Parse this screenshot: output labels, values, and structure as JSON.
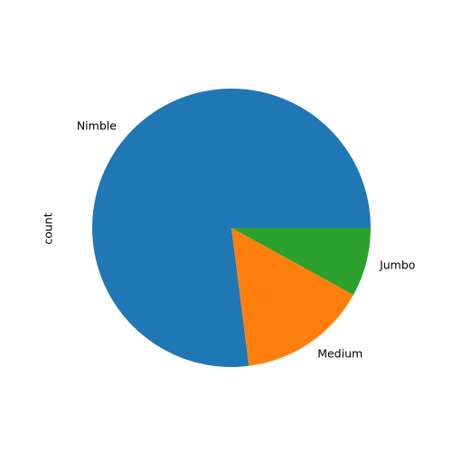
{
  "chart_data": {
    "type": "pie",
    "ylabel": "count",
    "start_angle_deg": 0,
    "direction": "counterclockwise",
    "slices": [
      {
        "label": "Nimble",
        "value": 77,
        "color": "#1f77b4"
      },
      {
        "label": "Medium",
        "value": 15,
        "color": "#ff7f0e"
      },
      {
        "label": "Jumbo",
        "value": 8,
        "color": "#2ca02c"
      }
    ]
  }
}
